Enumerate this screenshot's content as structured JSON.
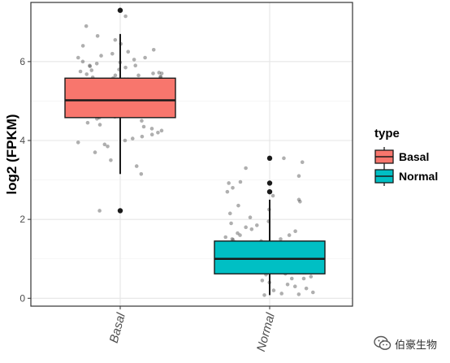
{
  "chart_data": {
    "type": "boxplot",
    "title": "",
    "xlabel": "",
    "ylabel": "log2 (FPKM)",
    "ylim": [
      -0.2,
      7.5
    ],
    "yticks": [
      0,
      2,
      4,
      6
    ],
    "categories": [
      "Basal",
      "Normal"
    ],
    "grid": true,
    "legend": {
      "title": "type",
      "position": "right",
      "entries": [
        {
          "label": "Basal",
          "color": "#F8766D"
        },
        {
          "label": "Normal",
          "color": "#00BFC4"
        }
      ]
    },
    "boxes": [
      {
        "category": "Basal",
        "color": "#F8766D",
        "q1": 4.58,
        "median": 5.02,
        "q3": 5.58,
        "whisker_low": 3.15,
        "whisker_high": 6.7,
        "outliers": [
          7.3,
          2.22
        ],
        "jitter": [
          7.3,
          7.15,
          6.9,
          6.65,
          6.55,
          6.45,
          6.4,
          6.3,
          6.25,
          6.2,
          6.15,
          6.1,
          6.05,
          6.0,
          5.98,
          5.95,
          5.9,
          5.88,
          5.85,
          5.8,
          5.78,
          5.75,
          5.72,
          5.7,
          5.68,
          5.65,
          5.62,
          5.6,
          5.58,
          5.55,
          5.52,
          5.5,
          5.48,
          5.45,
          5.42,
          5.4,
          5.38,
          5.35,
          5.32,
          5.3,
          5.28,
          5.25,
          5.22,
          5.2,
          5.18,
          5.15,
          5.12,
          5.1,
          5.08,
          5.05,
          5.02,
          5.0,
          4.98,
          4.95,
          4.92,
          4.9,
          4.88,
          4.85,
          4.82,
          4.8,
          4.78,
          4.75,
          4.72,
          4.7,
          4.68,
          4.65,
          4.62,
          4.6,
          4.58,
          4.55,
          4.5,
          4.45,
          4.4,
          4.35,
          4.3,
          4.25,
          4.2,
          4.15,
          4.1,
          4.05,
          4.0,
          3.95,
          3.9,
          3.85,
          3.7,
          3.5,
          3.35,
          3.15,
          2.22,
          5.6,
          5.45,
          5.3,
          5.15,
          5.05,
          4.95,
          4.85,
          4.75,
          5.7,
          5.55,
          5.35,
          5.25,
          5.1,
          4.9,
          4.7,
          6.1,
          5.9,
          5.65,
          5.5
        ]
      },
      {
        "category": "Normal",
        "color": "#00BFC4",
        "q1": 0.62,
        "median": 1.0,
        "q3": 1.45,
        "whisker_low": 0.08,
        "whisker_high": 2.5,
        "outliers": [
          3.55,
          2.92,
          2.7
        ],
        "jitter": [
          3.55,
          3.45,
          3.3,
          3.1,
          2.95,
          2.92,
          2.8,
          2.7,
          2.6,
          2.5,
          2.45,
          2.35,
          2.25,
          2.15,
          2.05,
          1.95,
          1.9,
          1.85,
          1.8,
          1.75,
          1.7,
          1.65,
          1.6,
          1.55,
          1.5,
          1.48,
          1.45,
          1.42,
          1.4,
          1.38,
          1.35,
          1.32,
          1.3,
          1.28,
          1.25,
          1.22,
          1.2,
          1.18,
          1.15,
          1.12,
          1.1,
          1.08,
          1.05,
          1.02,
          1.0,
          0.98,
          0.95,
          0.92,
          0.9,
          0.88,
          0.85,
          0.82,
          0.8,
          0.78,
          0.75,
          0.72,
          0.7,
          0.68,
          0.65,
          0.62,
          0.6,
          0.55,
          0.5,
          0.45,
          0.4,
          0.35,
          0.3,
          0.25,
          0.2,
          0.15,
          0.12,
          0.1,
          0.08,
          1.5,
          1.3,
          1.1,
          0.9,
          0.7,
          0.5,
          1.25,
          1.05,
          0.85,
          0.65,
          1.6,
          1.4,
          1.2,
          1.0,
          0.8
        ]
      }
    ]
  },
  "watermark": {
    "text": "伯豪生物",
    "icon": "wechat-icon"
  }
}
